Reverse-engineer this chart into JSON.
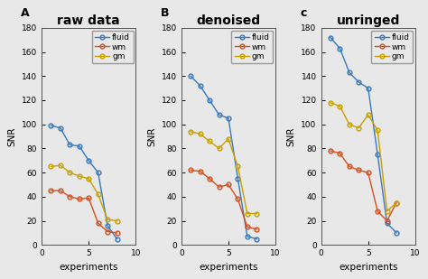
{
  "titles": [
    "raw data",
    "denoised",
    "unringed"
  ],
  "panel_labels": [
    "A",
    "B",
    "c"
  ],
  "xlabel": "experiments",
  "ylabel": "SNR",
  "xlim": [
    0,
    10
  ],
  "ylim": [
    0,
    180
  ],
  "yticks": [
    0,
    20,
    40,
    60,
    80,
    100,
    120,
    140,
    160,
    180
  ],
  "xticks": [
    0,
    5,
    10
  ],
  "legend_labels": [
    "fluid",
    "wm",
    "gm"
  ],
  "colors": {
    "fluid": "#3878C0",
    "wm": "#D45020",
    "gm": "#C8A000"
  },
  "bg_color": "#E8E8E8",
  "raw": {
    "fluid": {
      "x": [
        1,
        2,
        3,
        4,
        5,
        6,
        7,
        8
      ],
      "y": [
        99,
        97,
        83,
        82,
        70,
        60,
        16,
        5
      ]
    },
    "wm": {
      "x": [
        1,
        2,
        3,
        4,
        5,
        6,
        7,
        8
      ],
      "y": [
        45,
        45,
        40,
        38,
        39,
        18,
        11,
        10
      ]
    },
    "gm": {
      "x": [
        1,
        2,
        3,
        4,
        5,
        6,
        7,
        8
      ],
      "y": [
        65,
        66,
        60,
        57,
        55,
        42,
        21,
        20
      ]
    }
  },
  "denoised": {
    "fluid": {
      "x": [
        1,
        2,
        3,
        4,
        5,
        6,
        7,
        8
      ],
      "y": [
        140,
        132,
        120,
        108,
        105,
        55,
        7,
        5
      ]
    },
    "wm": {
      "x": [
        1,
        2,
        3,
        4,
        5,
        6,
        7,
        8
      ],
      "y": [
        62,
        61,
        55,
        48,
        50,
        38,
        15,
        13
      ]
    },
    "gm": {
      "x": [
        1,
        2,
        3,
        4,
        5,
        6,
        7,
        8
      ],
      "y": [
        94,
        92,
        86,
        80,
        88,
        65,
        26,
        26
      ]
    }
  },
  "unringed": {
    "fluid": {
      "x": [
        1,
        2,
        3,
        4,
        5,
        6,
        7,
        8
      ],
      "y": [
        172,
        163,
        143,
        135,
        130,
        75,
        18,
        10
      ]
    },
    "wm": {
      "x": [
        1,
        2,
        3,
        4,
        5,
        6,
        7,
        8
      ],
      "y": [
        78,
        76,
        65,
        62,
        60,
        28,
        20,
        35
      ]
    },
    "gm": {
      "x": [
        1,
        2,
        3,
        4,
        5,
        6,
        7,
        8
      ],
      "y": [
        118,
        115,
        100,
        97,
        108,
        95,
        28,
        35
      ]
    }
  }
}
